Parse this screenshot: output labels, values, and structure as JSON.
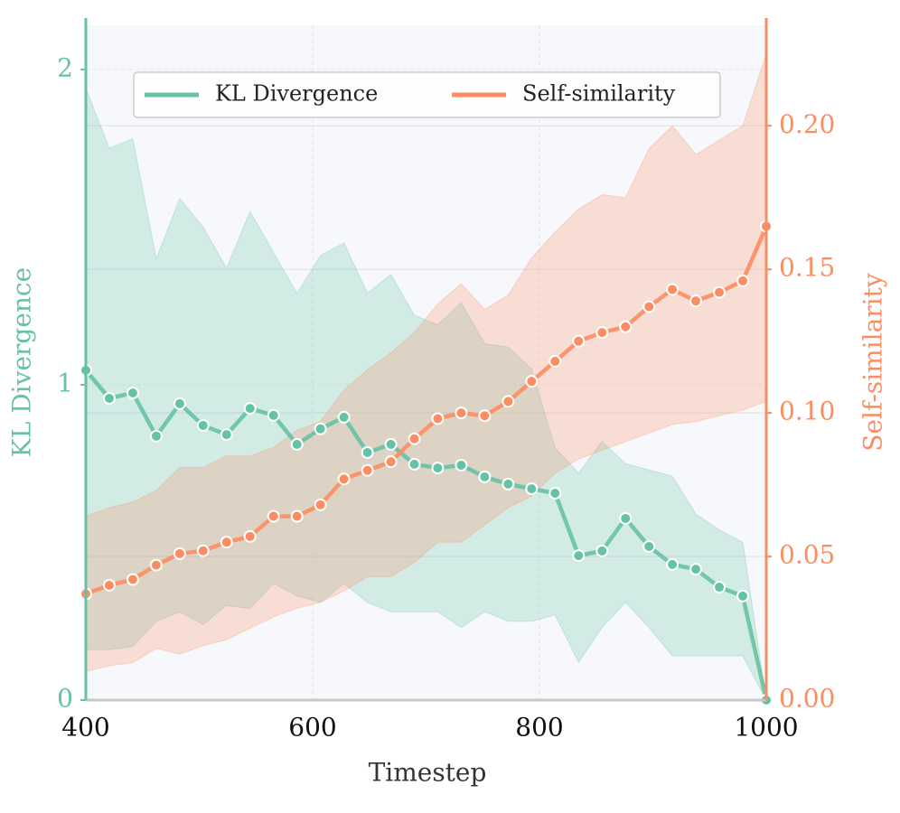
{
  "chart_data": {
    "type": "line",
    "x_label": "Timestep",
    "y_label": "KL Divergence",
    "y2_label": "Self-similarity",
    "x": [
      400,
      420.7,
      441.4,
      462.1,
      482.8,
      503.4,
      524.1,
      544.8,
      565.5,
      586.2,
      606.9,
      627.6,
      648.3,
      669.0,
      689.7,
      710.3,
      731.0,
      751.7,
      772.4,
      793.1,
      813.8,
      834.5,
      855.2,
      875.9,
      896.6,
      917.2,
      937.9,
      958.6,
      979.3,
      1000
    ],
    "xlim": [
      400,
      1000
    ],
    "xticks": [
      400,
      600,
      800,
      1000
    ],
    "ylim": [
      0,
      2.14
    ],
    "yticks": [
      0,
      1,
      2
    ],
    "y2lim": [
      0,
      0.235
    ],
    "y2ticks": [
      {
        "value": 0,
        "label": "0.00"
      },
      {
        "value": 0.05,
        "label": "0.05"
      },
      {
        "value": 0.1,
        "label": "0.10"
      },
      {
        "value": 0.15,
        "label": "0.15"
      },
      {
        "value": 0.2,
        "label": "0.20"
      }
    ],
    "grid": true,
    "legend": "upper center",
    "series": [
      {
        "name": "KL Divergence",
        "color": "#66c2a5",
        "axis": "y",
        "values": [
          1.046,
          0.957,
          0.974,
          0.837,
          0.94,
          0.871,
          0.842,
          0.925,
          0.903,
          0.811,
          0.86,
          0.897,
          0.785,
          0.811,
          0.748,
          0.736,
          0.745,
          0.708,
          0.685,
          0.67,
          0.656,
          0.458,
          0.473,
          0.576,
          0.487,
          0.43,
          0.415,
          0.358,
          0.33,
          0
        ],
        "upper": [
          1.94,
          1.75,
          1.78,
          1.4,
          1.59,
          1.5,
          1.37,
          1.55,
          1.42,
          1.29,
          1.41,
          1.45,
          1.29,
          1.35,
          1.22,
          1.19,
          1.26,
          1.13,
          1.12,
          1.05,
          0.8,
          0.72,
          0.82,
          0.75,
          0.73,
          0.71,
          0.59,
          0.54,
          0.5,
          0
        ],
        "lower": [
          0.16,
          0.16,
          0.17,
          0.25,
          0.28,
          0.24,
          0.3,
          0.29,
          0.37,
          0.33,
          0.31,
          0.37,
          0.31,
          0.28,
          0.28,
          0.28,
          0.23,
          0.28,
          0.25,
          0.25,
          0.27,
          0.12,
          0.23,
          0.31,
          0.23,
          0.14,
          0.14,
          0.14,
          0.14,
          0
        ]
      },
      {
        "name": "Self-similarity",
        "color": "#fc8d62",
        "axis": "y2",
        "values": [
          0.037,
          0.04,
          0.042,
          0.047,
          0.051,
          0.052,
          0.055,
          0.057,
          0.064,
          0.064,
          0.068,
          0.077,
          0.08,
          0.083,
          0.091,
          0.098,
          0.1,
          0.099,
          0.104,
          0.111,
          0.118,
          0.125,
          0.128,
          0.13,
          0.137,
          0.143,
          0.139,
          0.142,
          0.146,
          0.165
        ],
        "upper": [
          0.064,
          0.067,
          0.069,
          0.073,
          0.081,
          0.081,
          0.085,
          0.085,
          0.088,
          0.094,
          0.097,
          0.108,
          0.115,
          0.121,
          0.128,
          0.138,
          0.145,
          0.136,
          0.141,
          0.154,
          0.163,
          0.171,
          0.176,
          0.175,
          0.192,
          0.2,
          0.19,
          0.195,
          0.2,
          0.225
        ],
        "lower": [
          0.01,
          0.012,
          0.013,
          0.018,
          0.016,
          0.019,
          0.021,
          0.025,
          0.029,
          0.032,
          0.034,
          0.038,
          0.043,
          0.043,
          0.048,
          0.055,
          0.055,
          0.061,
          0.067,
          0.071,
          0.079,
          0.084,
          0.087,
          0.09,
          0.093,
          0.096,
          0.097,
          0.099,
          0.101,
          0.104
        ]
      }
    ]
  }
}
